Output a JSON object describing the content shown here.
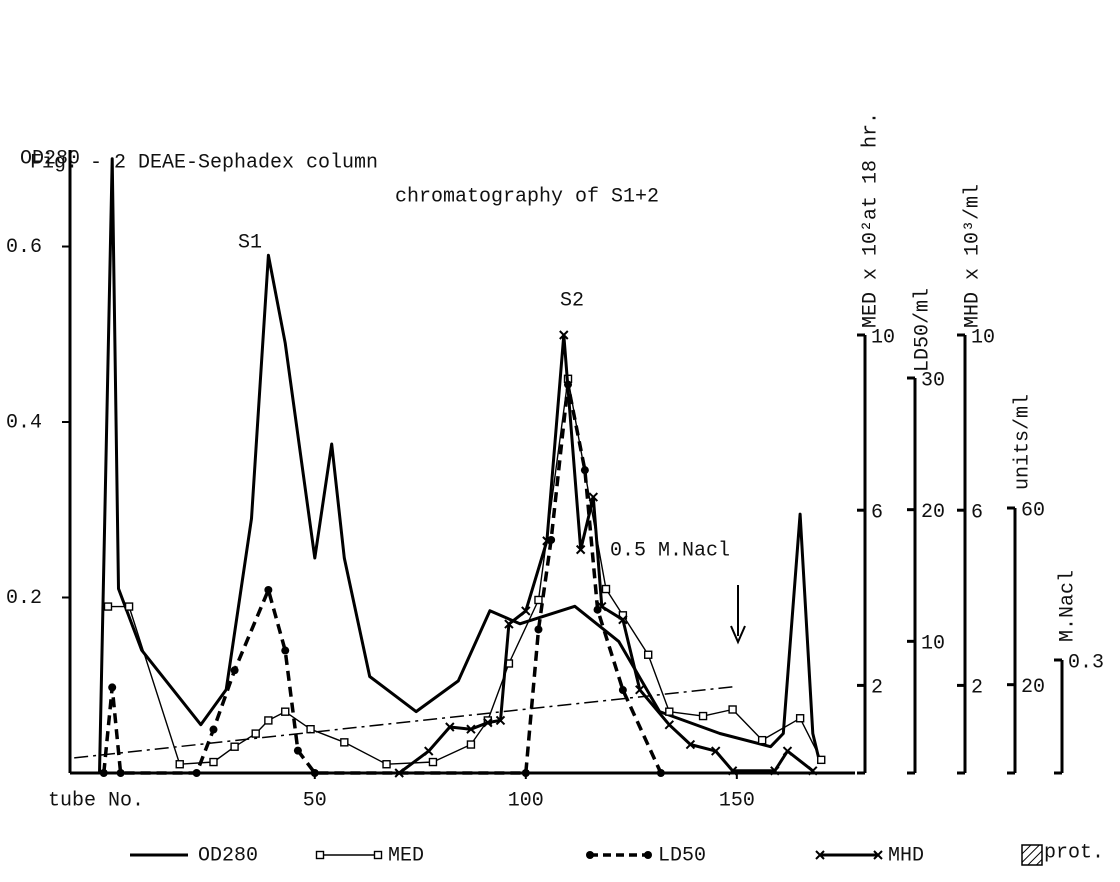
{
  "chart_data": {
    "type": "line",
    "title": "Fig. - 2  DEAE-Sephadex column",
    "subtitle": "chromatography of S1+2",
    "xlabel": "tube No.",
    "xlim": [
      -8,
      178
    ],
    "xticks": [
      50,
      100,
      150
    ],
    "ylabel": "OD280",
    "ylim": [
      0,
      0.71
    ],
    "yticks": [
      0.2,
      0.4,
      0.6
    ],
    "right_axes": [
      {
        "id": "med",
        "label": "MED x 10²at 18 hr.",
        "lim": [
          0,
          10
        ],
        "ticks": [
          2,
          6,
          10
        ]
      },
      {
        "id": "ld50",
        "label": "LD50/ml",
        "lim": [
          0,
          30
        ],
        "ticks": [
          10,
          20,
          30
        ]
      },
      {
        "id": "mhd",
        "label": "MHD x 10³/ml",
        "lim": [
          0,
          10
        ],
        "ticks": [
          2,
          6,
          10
        ]
      },
      {
        "id": "units",
        "label": "units/ml",
        "lim": [
          0,
          60
        ],
        "ticks": [
          20,
          60
        ]
      },
      {
        "id": "nacl",
        "label": "M.Nacl",
        "lim": [
          0,
          0.3
        ],
        "ticks": [
          0.3
        ]
      }
    ],
    "series": [
      {
        "name": "OD280",
        "axis": "y",
        "line": "solid",
        "marker": "none",
        "color": "#000000",
        "x": [
          -1,
          2,
          3.5,
          9,
          23,
          29,
          35,
          39,
          43,
          50,
          54,
          57,
          63,
          74,
          84,
          91.5,
          98.6,
          111.6,
          122,
          131.7,
          146,
          158,
          161,
          165,
          168,
          169.5
        ],
        "values": [
          0,
          0.7,
          0.21,
          0.14,
          0.055,
          0.095,
          0.29,
          0.59,
          0.49,
          0.245,
          0.375,
          0.245,
          0.11,
          0.07,
          0.105,
          0.185,
          0.17,
          0.19,
          0.15,
          0.07,
          0.045,
          0.03,
          0.045,
          0.295,
          0.045,
          0.015
        ]
      },
      {
        "name": "MED",
        "axis": "med",
        "line": "thin",
        "marker": "square",
        "color": "#000000",
        "x": [
          1,
          6,
          18,
          26,
          31,
          36,
          39,
          43,
          49,
          57,
          67,
          78,
          87,
          91,
          96,
          103,
          110,
          119,
          123,
          129,
          134,
          142,
          149,
          156,
          165,
          170
        ],
        "values": [
          3.8,
          3.8,
          0.2,
          0.25,
          0.6,
          0.9,
          1.2,
          1.4,
          1.0,
          0.7,
          0.2,
          0.25,
          0.65,
          1.2,
          2.5,
          3.95,
          9.0,
          4.2,
          3.6,
          2.7,
          1.4,
          1.3,
          1.45,
          0.75,
          1.25,
          0.3
        ]
      },
      {
        "name": "LD50",
        "axis": "ld50",
        "line": "dashed",
        "marker": "dot",
        "color": "#000000",
        "x": [
          0,
          2,
          4,
          22,
          26,
          31,
          39,
          43,
          46,
          50,
          100,
          103,
          106,
          110,
          114,
          117,
          123,
          132
        ],
        "values": [
          0,
          6.5,
          0,
          0,
          3.3,
          7.8,
          13.9,
          9.3,
          1.7,
          0,
          0,
          10.9,
          17.7,
          29.5,
          23,
          12.4,
          6.3,
          0
        ]
      },
      {
        "name": "MHD",
        "axis": "mhd",
        "line": "solid",
        "marker": "cross",
        "color": "#000000",
        "x": [
          70,
          77,
          82,
          87,
          91,
          94,
          96,
          100,
          105,
          109,
          113,
          116,
          118,
          123,
          127,
          134,
          139,
          145,
          149,
          159,
          162,
          168
        ],
        "values": [
          0,
          0.5,
          1.05,
          1.0,
          1.15,
          1.2,
          3.4,
          3.7,
          5.3,
          10.0,
          5.1,
          6.3,
          3.8,
          3.5,
          1.9,
          1.1,
          0.65,
          0.5,
          0.05,
          0.05,
          0.5,
          0.05
        ]
      },
      {
        "axis": "nacl",
        "line": "dashdot",
        "marker": "none",
        "color": "#000000",
        "x": [
          -7,
          150
        ],
        "values": [
          0.04,
          0.23
        ]
      }
    ],
    "hatch_legend": "prot.",
    "annotations": [
      "S1",
      "S2",
      "0.5 M.Nacl"
    ]
  }
}
